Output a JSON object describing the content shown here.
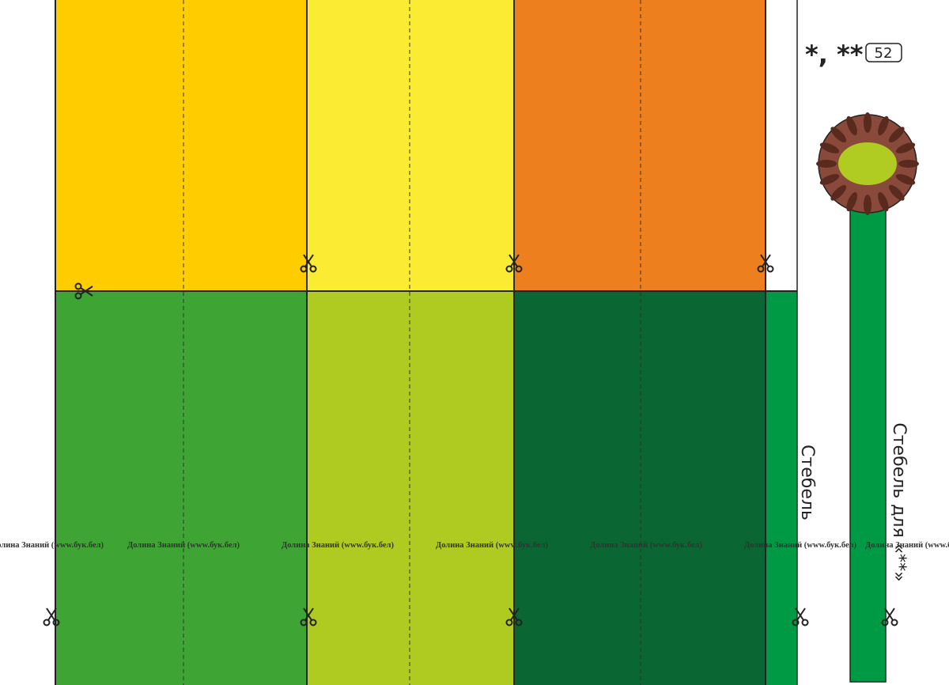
{
  "header": {
    "marks": "*, **",
    "page": "52"
  },
  "labels": {
    "stem": "Стебель",
    "stem_for": "Стебель для «**»"
  },
  "watermarks": [
    "Долина Знаний (www.бук.бел)",
    "Долина Знаний (www.бук.бел)",
    "Долина Знаний (www.бук.бел)",
    "Долина Знаний (www.бук.бел)",
    "Долина Знаний (www.бук.бел)",
    "Долина Знаний (www.бук.бел)",
    "Долина Знаний (www.бук.бел)"
  ]
}
